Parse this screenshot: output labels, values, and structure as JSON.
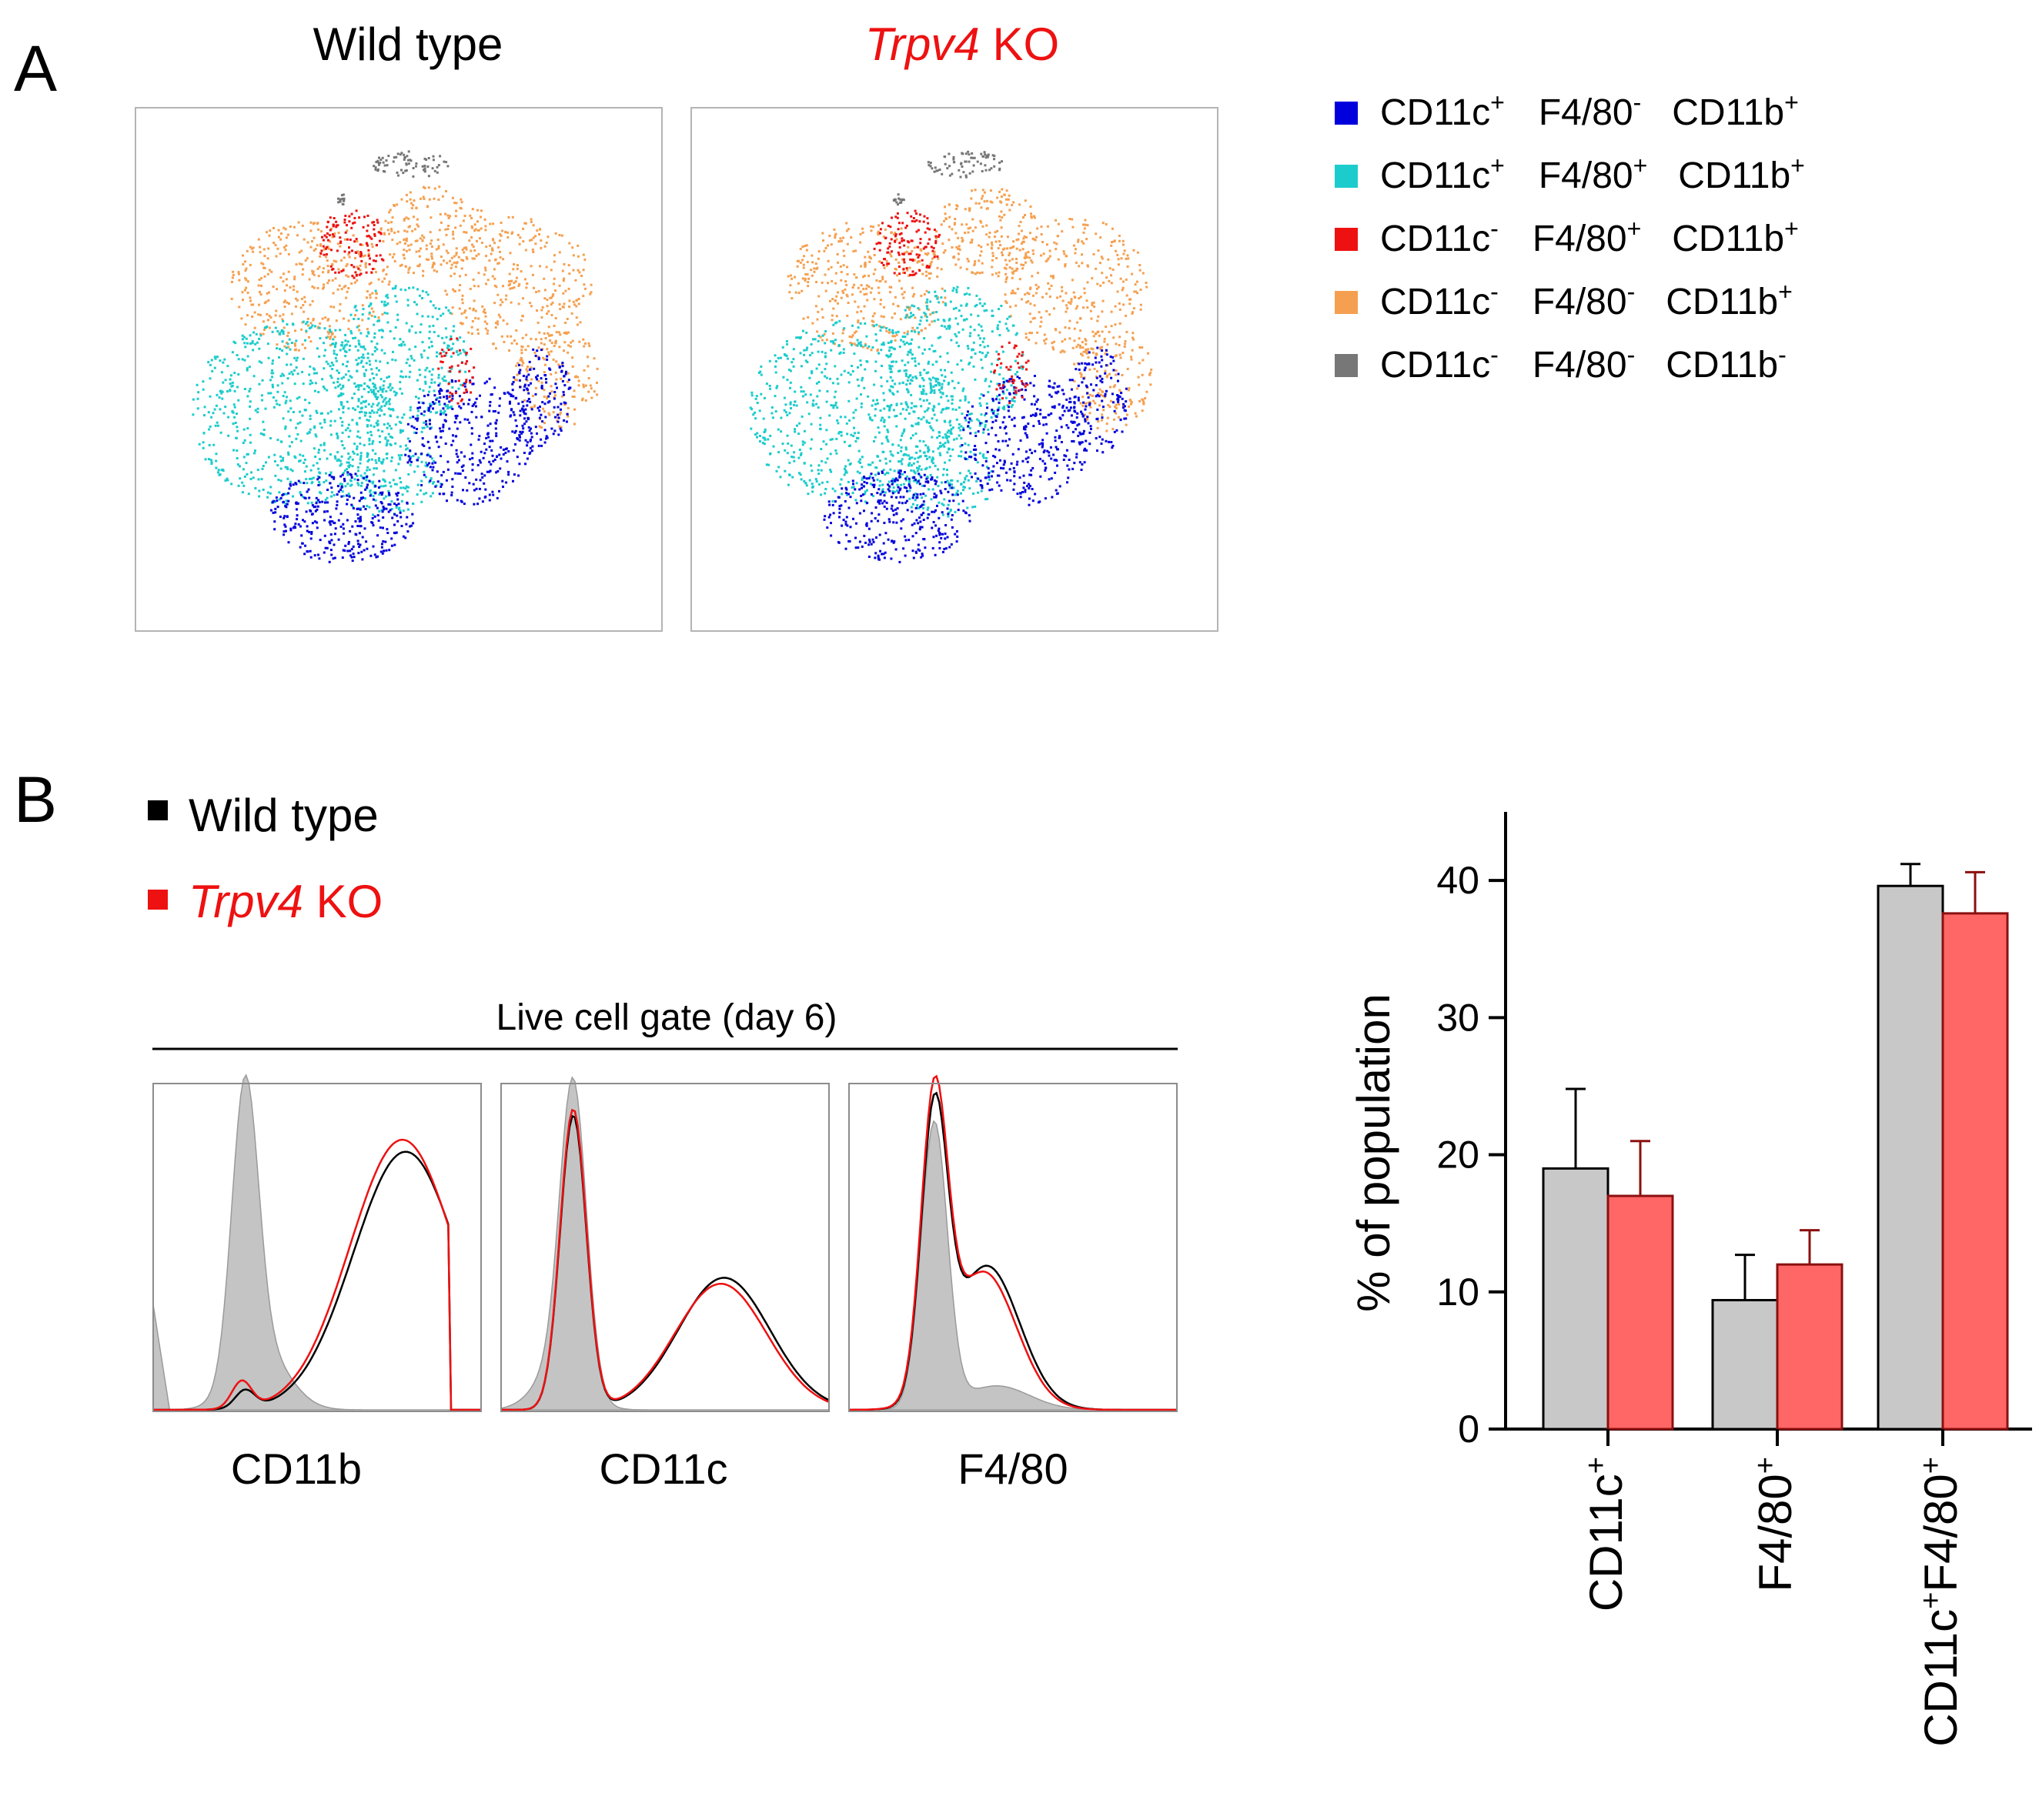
{
  "panels": {
    "a_label": "A",
    "b_label": "B"
  },
  "panel_a": {
    "wild_type_title": "Wild type",
    "ko_title_italic": "Trpv4",
    "ko_title_rest": " KO",
    "legend": [
      {
        "color": "#0000dd",
        "m1": "CD11c",
        "s1": "+",
        "m2": "F4/80",
        "s2": "-",
        "m3": "CD11b",
        "s3": "+"
      },
      {
        "color": "#1ccccc",
        "m1": "CD11c",
        "s1": "+",
        "m2": "F4/80",
        "s2": "+",
        "m3": "CD11b",
        "s3": "+"
      },
      {
        "color": "#ee1111",
        "m1": "CD11c",
        "s1": "-",
        "m2": "F4/80",
        "s2": "+",
        "m3": "CD11b",
        "s3": "+"
      },
      {
        "color": "#f5a050",
        "m1": "CD11c",
        "s1": "-",
        "m2": "F4/80",
        "s2": "-",
        "m3": "CD11b",
        "s3": "+"
      },
      {
        "color": "#777777",
        "m1": "CD11c",
        "s1": "-",
        "m2": "F4/80",
        "s2": "-",
        "m3": "CD11b",
        "s3": "-"
      }
    ]
  },
  "panel_b": {
    "legend": [
      {
        "color": "#000000",
        "label": "Wild type"
      },
      {
        "color": "#ee1111",
        "italic": "Trpv4",
        "label": " KO"
      }
    ],
    "gate_label": "Live cell gate (day 6)",
    "histograms": [
      {
        "label": "CD11b"
      },
      {
        "label": "CD11c"
      },
      {
        "label": "F4/80"
      }
    ]
  },
  "chart_data": {
    "type": "bar",
    "ylabel": "% of population",
    "ylim": [
      0,
      45
    ],
    "yticks": [
      0,
      10,
      20,
      30,
      40
    ],
    "categories": [
      {
        "main": "CD11c",
        "sup": "+"
      },
      {
        "main": "F4/80",
        "sup": "+"
      },
      {
        "main": "CD11c",
        "sup": "+",
        "main2": "F4/80",
        "sup2": "+"
      }
    ],
    "series": [
      {
        "name": "Wild type",
        "color": "#c8c8c8",
        "values": [
          19,
          9.4,
          39.6
        ],
        "errors": [
          5.8,
          3.3,
          1.6
        ]
      },
      {
        "name": "Trpv4 KO",
        "color": "#ff6666",
        "values": [
          17,
          12,
          37.6
        ],
        "errors": [
          4.0,
          2.5,
          3.0
        ]
      }
    ]
  }
}
